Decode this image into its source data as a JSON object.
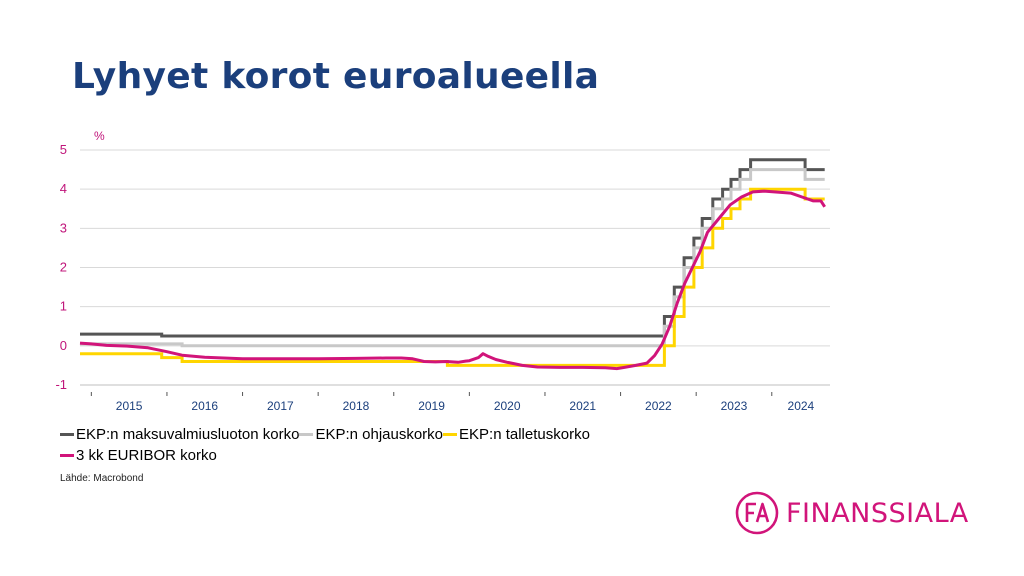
{
  "title": "Lyhyet korot euroalueella",
  "source": "Lähde: Macrobond",
  "logo": {
    "mark_text": "FA",
    "name": "FINANSSIALA",
    "color": "#d1147a"
  },
  "chart_data": {
    "type": "line",
    "unit_label": "%",
    "ylim": [
      -1,
      5
    ],
    "yticks": [
      "5",
      "4",
      "3",
      "2",
      "1",
      "0",
      "-1"
    ],
    "xlim": [
      2014.85,
      2024.77
    ],
    "year_labels": [
      "2015",
      "2016",
      "2017",
      "2018",
      "2019",
      "2020",
      "2021",
      "2022",
      "2023",
      "2024"
    ],
    "grid": true,
    "legend_placement": "bottom",
    "series": [
      {
        "name": "EKP:n maksuvalmiusluoton korko",
        "color": "#555555",
        "step": true,
        "points": [
          [
            2014.85,
            0.3
          ],
          [
            2015.93,
            0.3
          ],
          [
            2015.93,
            0.25
          ],
          [
            2022.05,
            0.25
          ],
          [
            2022.58,
            0.25
          ],
          [
            2022.58,
            0.75
          ],
          [
            2022.71,
            0.75
          ],
          [
            2022.71,
            1.5
          ],
          [
            2022.84,
            1.5
          ],
          [
            2022.84,
            2.25
          ],
          [
            2022.97,
            2.25
          ],
          [
            2022.97,
            2.75
          ],
          [
            2023.08,
            2.75
          ],
          [
            2023.08,
            3.25
          ],
          [
            2023.22,
            3.25
          ],
          [
            2023.22,
            3.75
          ],
          [
            2023.35,
            3.75
          ],
          [
            2023.35,
            4.0
          ],
          [
            2023.46,
            4.0
          ],
          [
            2023.46,
            4.25
          ],
          [
            2023.58,
            4.25
          ],
          [
            2023.58,
            4.5
          ],
          [
            2023.72,
            4.5
          ],
          [
            2023.72,
            4.75
          ],
          [
            2024.44,
            4.75
          ],
          [
            2024.44,
            4.5
          ],
          [
            2024.7,
            4.5
          ]
        ]
      },
      {
        "name": "EKP:n ohjauskorko",
        "color": "#c8c8c8",
        "step": true,
        "points": [
          [
            2014.85,
            0.05
          ],
          [
            2016.2,
            0.05
          ],
          [
            2016.2,
            0.0
          ],
          [
            2022.58,
            0.0
          ],
          [
            2022.58,
            0.5
          ],
          [
            2022.71,
            0.5
          ],
          [
            2022.71,
            1.25
          ],
          [
            2022.84,
            1.25
          ],
          [
            2022.84,
            2.0
          ],
          [
            2022.97,
            2.0
          ],
          [
            2022.97,
            2.5
          ],
          [
            2023.08,
            2.5
          ],
          [
            2023.08,
            3.0
          ],
          [
            2023.22,
            3.0
          ],
          [
            2023.22,
            3.5
          ],
          [
            2023.35,
            3.5
          ],
          [
            2023.35,
            3.75
          ],
          [
            2023.46,
            3.75
          ],
          [
            2023.46,
            4.0
          ],
          [
            2023.58,
            4.0
          ],
          [
            2023.58,
            4.25
          ],
          [
            2023.72,
            4.25
          ],
          [
            2023.72,
            4.5
          ],
          [
            2024.44,
            4.5
          ],
          [
            2024.44,
            4.25
          ],
          [
            2024.7,
            4.25
          ]
        ]
      },
      {
        "name": "EKP:n talletuskorko",
        "color": "#ffd500",
        "step": true,
        "points": [
          [
            2014.85,
            -0.2
          ],
          [
            2015.93,
            -0.2
          ],
          [
            2015.93,
            -0.3
          ],
          [
            2016.2,
            -0.3
          ],
          [
            2016.2,
            -0.4
          ],
          [
            2019.71,
            -0.4
          ],
          [
            2019.71,
            -0.5
          ],
          [
            2022.58,
            -0.5
          ],
          [
            2022.58,
            0.0
          ],
          [
            2022.71,
            0.0
          ],
          [
            2022.71,
            0.75
          ],
          [
            2022.84,
            0.75
          ],
          [
            2022.84,
            1.5
          ],
          [
            2022.97,
            1.5
          ],
          [
            2022.97,
            2.0
          ],
          [
            2023.08,
            2.0
          ],
          [
            2023.08,
            2.5
          ],
          [
            2023.22,
            2.5
          ],
          [
            2023.22,
            3.0
          ],
          [
            2023.35,
            3.0
          ],
          [
            2023.35,
            3.25
          ],
          [
            2023.46,
            3.25
          ],
          [
            2023.46,
            3.5
          ],
          [
            2023.58,
            3.5
          ],
          [
            2023.58,
            3.75
          ],
          [
            2023.72,
            3.75
          ],
          [
            2023.72,
            4.0
          ],
          [
            2024.44,
            4.0
          ],
          [
            2024.44,
            3.75
          ],
          [
            2024.7,
            3.75
          ]
        ]
      },
      {
        "name": "3 kk EURIBOR korko",
        "color": "#d1147a",
        "step": false,
        "points": [
          [
            2014.85,
            0.07
          ],
          [
            2015.0,
            0.05
          ],
          [
            2015.2,
            0.01
          ],
          [
            2015.5,
            -0.01
          ],
          [
            2015.75,
            -0.05
          ],
          [
            2016.0,
            -0.15
          ],
          [
            2016.2,
            -0.24
          ],
          [
            2016.5,
            -0.29
          ],
          [
            2017.0,
            -0.33
          ],
          [
            2017.5,
            -0.33
          ],
          [
            2018.0,
            -0.33
          ],
          [
            2018.5,
            -0.32
          ],
          [
            2018.9,
            -0.31
          ],
          [
            2019.1,
            -0.31
          ],
          [
            2019.25,
            -0.33
          ],
          [
            2019.4,
            -0.4
          ],
          [
            2019.55,
            -0.41
          ],
          [
            2019.7,
            -0.4
          ],
          [
            2019.85,
            -0.42
          ],
          [
            2019.95,
            -0.39
          ],
          [
            2020.0,
            -0.38
          ],
          [
            2020.12,
            -0.3
          ],
          [
            2020.18,
            -0.2
          ],
          [
            2020.25,
            -0.27
          ],
          [
            2020.35,
            -0.35
          ],
          [
            2020.5,
            -0.42
          ],
          [
            2020.7,
            -0.5
          ],
          [
            2020.9,
            -0.54
          ],
          [
            2021.2,
            -0.55
          ],
          [
            2021.5,
            -0.55
          ],
          [
            2021.8,
            -0.56
          ],
          [
            2021.95,
            -0.58
          ],
          [
            2022.05,
            -0.55
          ],
          [
            2022.2,
            -0.5
          ],
          [
            2022.35,
            -0.44
          ],
          [
            2022.45,
            -0.25
          ],
          [
            2022.55,
            0.05
          ],
          [
            2022.65,
            0.5
          ],
          [
            2022.75,
            1.1
          ],
          [
            2022.85,
            1.6
          ],
          [
            2022.95,
            2.0
          ],
          [
            2023.05,
            2.4
          ],
          [
            2023.15,
            2.9
          ],
          [
            2023.3,
            3.25
          ],
          [
            2023.45,
            3.6
          ],
          [
            2023.6,
            3.8
          ],
          [
            2023.75,
            3.93
          ],
          [
            2023.9,
            3.95
          ],
          [
            2024.1,
            3.92
          ],
          [
            2024.25,
            3.9
          ],
          [
            2024.4,
            3.8
          ],
          [
            2024.55,
            3.7
          ],
          [
            2024.65,
            3.7
          ],
          [
            2024.7,
            3.55
          ]
        ]
      }
    ]
  }
}
